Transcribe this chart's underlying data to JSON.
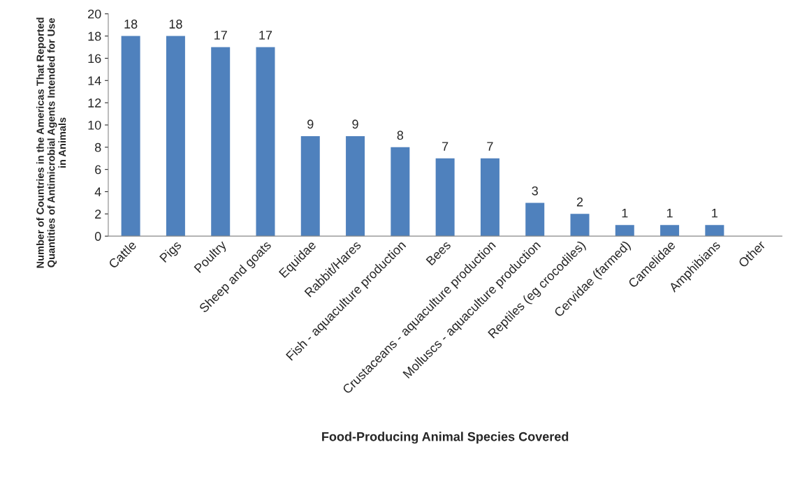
{
  "chart_data": {
    "type": "bar",
    "xlabel": "Food-Producing Animal Species Covered",
    "ylabel": "Number of Countries in the Americas That Reported\nQuantities of Antimicrobial Agents Intended for Use\nin Animals",
    "categories": [
      "Cattle",
      "Pigs",
      "Poultry",
      "Sheep and goats",
      "Equidae",
      "Rabbit/Hares",
      "Fish - aquaculture production",
      "Bees",
      "Crustaceans - aquaculture production",
      "Molluscs - aquaculture production",
      "Reptiles (eg crocodiles)",
      "Cervidae (farmed)",
      "Camelidae",
      "Amphibians",
      "Other"
    ],
    "values": [
      18,
      18,
      17,
      17,
      9,
      9,
      8,
      7,
      7,
      3,
      2,
      1,
      1,
      1,
      0
    ],
    "value_labels": [
      "18",
      "18",
      "17",
      "17",
      "9",
      "9",
      "8",
      "7",
      "7",
      "3",
      "2",
      "1",
      "1",
      "1",
      null
    ],
    "color": "#4f81bd",
    "ylim": [
      0,
      20
    ],
    "yticks": [
      0,
      2,
      4,
      6,
      8,
      10,
      12,
      14,
      16,
      18,
      20
    ],
    "grid": false,
    "legend": false
  }
}
